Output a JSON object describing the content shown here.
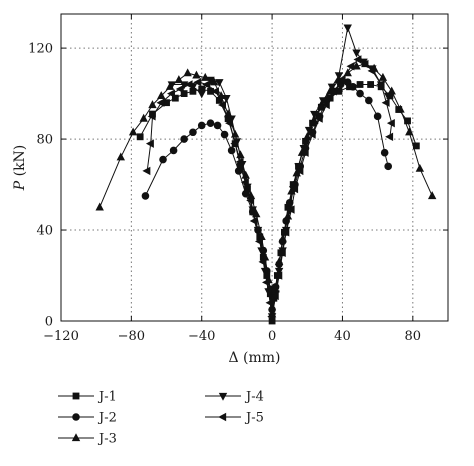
{
  "chart_data": {
    "type": "line",
    "xlabel": "Δ (mm)",
    "ylabel_italic": "P",
    "ylabel_unit": " (kN)",
    "xlim": [
      -120,
      100
    ],
    "ylim": [
      0,
      135
    ],
    "x_ticks": [
      -120,
      -80,
      -40,
      0,
      40,
      80
    ],
    "y_ticks": [
      0,
      40,
      80,
      120
    ],
    "grid": true,
    "legend_position": "bottom",
    "series": [
      {
        "name": "J-1",
        "marker": "square",
        "points": [
          [
            -75,
            81
          ],
          [
            -68,
            91
          ],
          [
            -60,
            96
          ],
          [
            -55,
            98
          ],
          [
            -50,
            100
          ],
          [
            -45,
            101
          ],
          [
            -40,
            102
          ],
          [
            -35,
            101
          ],
          [
            -30,
            97
          ],
          [
            -25,
            89
          ],
          [
            -21,
            78
          ],
          [
            -18,
            68
          ],
          [
            -14,
            58
          ],
          [
            -11,
            48
          ],
          [
            -7,
            37
          ],
          [
            -5,
            28
          ],
          [
            -3,
            20
          ],
          [
            -1,
            12
          ],
          [
            0,
            0
          ],
          [
            1,
            10
          ],
          [
            3,
            20
          ],
          [
            5,
            30
          ],
          [
            7,
            39
          ],
          [
            9,
            50
          ],
          [
            12,
            60
          ],
          [
            15,
            68
          ],
          [
            19,
            79
          ],
          [
            23,
            87
          ],
          [
            28,
            94
          ],
          [
            33,
            98
          ],
          [
            38,
            101
          ],
          [
            44,
            103
          ],
          [
            50,
            104
          ],
          [
            56,
            104
          ],
          [
            62,
            103
          ],
          [
            67,
            99
          ],
          [
            72,
            93
          ],
          [
            77,
            88
          ],
          [
            82,
            77
          ]
        ]
      },
      {
        "name": "J-2",
        "marker": "circle",
        "points": [
          [
            -72,
            55
          ],
          [
            -62,
            71
          ],
          [
            -56,
            75
          ],
          [
            -50,
            80
          ],
          [
            -45,
            83
          ],
          [
            -40,
            86
          ],
          [
            -35,
            87
          ],
          [
            -31,
            86
          ],
          [
            -27,
            82
          ],
          [
            -23,
            75
          ],
          [
            -19,
            66
          ],
          [
            -15,
            56
          ],
          [
            -11,
            48
          ],
          [
            -8,
            40
          ],
          [
            -5,
            31
          ],
          [
            -3,
            22
          ],
          [
            -1,
            14
          ],
          [
            0,
            5
          ],
          [
            2,
            15
          ],
          [
            4,
            25
          ],
          [
            6,
            35
          ],
          [
            8,
            44
          ],
          [
            10,
            52
          ],
          [
            13,
            60
          ],
          [
            16,
            68
          ],
          [
            19,
            76
          ],
          [
            23,
            83
          ],
          [
            27,
            90
          ],
          [
            31,
            97
          ],
          [
            35,
            101
          ],
          [
            39,
            104
          ],
          [
            43,
            105
          ],
          [
            46,
            103
          ],
          [
            50,
            100
          ],
          [
            55,
            97
          ],
          [
            60,
            90
          ],
          [
            64,
            74
          ],
          [
            66,
            68
          ]
        ]
      },
      {
        "name": "J-3",
        "marker": "triangle-up",
        "points": [
          [
            -98,
            50
          ],
          [
            -86,
            72
          ],
          [
            -79,
            83
          ],
          [
            -73,
            89
          ],
          [
            -68,
            95
          ],
          [
            -63,
            99
          ],
          [
            -58,
            103
          ],
          [
            -53,
            106
          ],
          [
            -48,
            109
          ],
          [
            -43,
            108
          ],
          [
            -38,
            107
          ],
          [
            -33,
            105
          ],
          [
            -29,
            99
          ],
          [
            -25,
            91
          ],
          [
            -21,
            82
          ],
          [
            -18,
            73
          ],
          [
            -15,
            64
          ],
          [
            -12,
            55
          ],
          [
            -9,
            47
          ],
          [
            -6,
            37
          ],
          [
            -4,
            28
          ],
          [
            -2,
            18
          ],
          [
            0,
            3
          ],
          [
            2,
            14
          ],
          [
            4,
            26
          ],
          [
            6,
            36
          ],
          [
            9,
            46
          ],
          [
            11,
            57
          ],
          [
            14,
            65
          ],
          [
            17,
            74
          ],
          [
            20,
            81
          ],
          [
            24,
            88
          ],
          [
            28,
            95
          ],
          [
            33,
            101
          ],
          [
            38,
            106
          ],
          [
            43,
            109
          ],
          [
            48,
            112
          ],
          [
            53,
            113
          ],
          [
            58,
            111
          ],
          [
            63,
            107
          ],
          [
            68,
            101
          ],
          [
            73,
            93
          ],
          [
            78,
            83
          ],
          [
            84,
            67
          ],
          [
            91,
            55
          ]
        ]
      },
      {
        "name": "J-4",
        "marker": "triangle-down",
        "points": [
          [
            -57,
            104
          ],
          [
            -50,
            104
          ],
          [
            -45,
            103
          ],
          [
            -40,
            100
          ],
          [
            -35,
            106
          ],
          [
            -30,
            105
          ],
          [
            -26,
            98
          ],
          [
            -23,
            89
          ],
          [
            -20,
            79
          ],
          [
            -17,
            69
          ],
          [
            -14,
            59
          ],
          [
            -11,
            49
          ],
          [
            -8,
            40
          ],
          [
            -6,
            31
          ],
          [
            -4,
            22
          ],
          [
            -2,
            13
          ],
          [
            0,
            2
          ],
          [
            2,
            12
          ],
          [
            4,
            22
          ],
          [
            6,
            31
          ],
          [
            8,
            40
          ],
          [
            10,
            49
          ],
          [
            12,
            58
          ],
          [
            15,
            68
          ],
          [
            18,
            76
          ],
          [
            21,
            84
          ],
          [
            24,
            91
          ],
          [
            29,
            97
          ],
          [
            34,
            103
          ],
          [
            38,
            108
          ],
          [
            43,
            129
          ],
          [
            48,
            118
          ],
          [
            52,
            114
          ],
          [
            57,
            111
          ],
          [
            62,
            104
          ],
          [
            66,
            99
          ]
        ]
      },
      {
        "name": "J-5",
        "marker": "triangle-left",
        "points": [
          [
            -71,
            66
          ],
          [
            -69,
            78
          ],
          [
            -68,
            90
          ],
          [
            -63,
            96
          ],
          [
            -57,
            100
          ],
          [
            -52,
            102
          ],
          [
            -47,
            104
          ],
          [
            -42,
            105
          ],
          [
            -37,
            104
          ],
          [
            -32,
            101
          ],
          [
            -28,
            95
          ],
          [
            -24,
            87
          ],
          [
            -21,
            78
          ],
          [
            -18,
            70
          ],
          [
            -15,
            61
          ],
          [
            -12,
            53
          ],
          [
            -10,
            44
          ],
          [
            -7,
            35
          ],
          [
            -5,
            26
          ],
          [
            -3,
            17
          ],
          [
            -1,
            8
          ],
          [
            0,
            2
          ],
          [
            2,
            11
          ],
          [
            4,
            20
          ],
          [
            6,
            30
          ],
          [
            8,
            39
          ],
          [
            11,
            49
          ],
          [
            13,
            58
          ],
          [
            16,
            66
          ],
          [
            19,
            74
          ],
          [
            23,
            82
          ],
          [
            27,
            89
          ],
          [
            31,
            95
          ],
          [
            35,
            101
          ],
          [
            40,
            106
          ],
          [
            45,
            112
          ],
          [
            49,
            115
          ],
          [
            53,
            113
          ],
          [
            57,
            110
          ],
          [
            62,
            104
          ],
          [
            65,
            96
          ],
          [
            68,
            87
          ],
          [
            67,
            81
          ]
        ]
      }
    ]
  }
}
